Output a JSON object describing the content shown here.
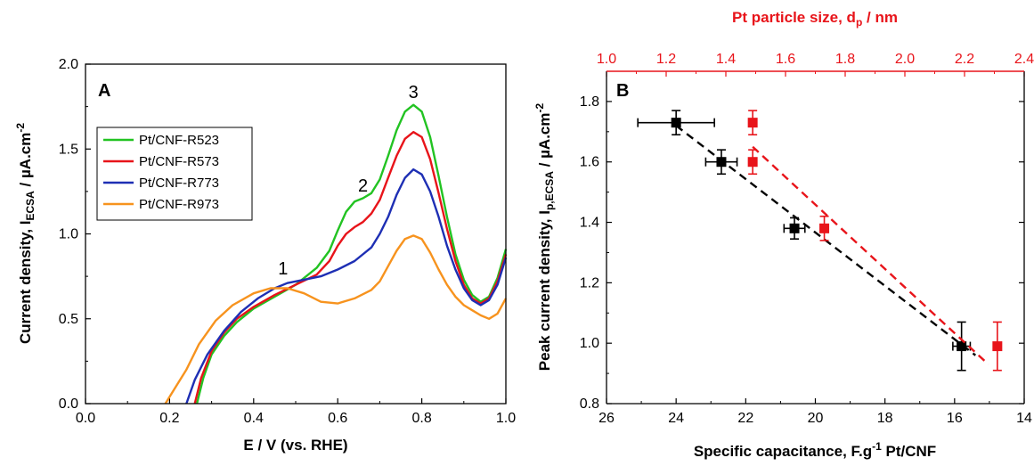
{
  "chart_data": [
    {
      "panel": "A",
      "type": "line",
      "xlabel": "E / V (vs. RHE)",
      "ylabel": {
        "main": "Current density, I",
        "sub": "ECSA",
        "unit": " / µA.cm",
        "sup": "-2"
      },
      "xlim": [
        0.0,
        1.0
      ],
      "ylim": [
        0.0,
        2.0
      ],
      "xticks": [
        0.0,
        0.2,
        0.4,
        0.6,
        0.8,
        1.0
      ],
      "yticks": [
        0.0,
        0.5,
        1.0,
        1.5,
        2.0
      ],
      "xticklabels": [
        "0.0",
        "0.2",
        "0.4",
        "0.6",
        "0.8",
        "1.0"
      ],
      "yticklabels": [
        "0.0",
        "0.5",
        "1.0",
        "1.5",
        "2.0"
      ],
      "legend_position": "top-left",
      "annotations": [
        {
          "text": "1",
          "x": 0.47,
          "y": 0.76
        },
        {
          "text": "2",
          "x": 0.66,
          "y": 1.25
        },
        {
          "text": "3",
          "x": 0.78,
          "y": 1.8
        }
      ],
      "series": [
        {
          "name": "Pt/CNF-R523",
          "color": "#22c322",
          "points": [
            [
              0.265,
              0.0
            ],
            [
              0.28,
              0.15
            ],
            [
              0.3,
              0.29
            ],
            [
              0.33,
              0.4
            ],
            [
              0.36,
              0.48
            ],
            [
              0.4,
              0.56
            ],
            [
              0.45,
              0.63
            ],
            [
              0.5,
              0.7
            ],
            [
              0.55,
              0.8
            ],
            [
              0.58,
              0.9
            ],
            [
              0.6,
              1.02
            ],
            [
              0.62,
              1.13
            ],
            [
              0.64,
              1.19
            ],
            [
              0.66,
              1.21
            ],
            [
              0.68,
              1.24
            ],
            [
              0.7,
              1.32
            ],
            [
              0.72,
              1.46
            ],
            [
              0.74,
              1.61
            ],
            [
              0.76,
              1.72
            ],
            [
              0.78,
              1.76
            ],
            [
              0.8,
              1.72
            ],
            [
              0.82,
              1.57
            ],
            [
              0.84,
              1.34
            ],
            [
              0.86,
              1.1
            ],
            [
              0.88,
              0.88
            ],
            [
              0.9,
              0.73
            ],
            [
              0.92,
              0.64
            ],
            [
              0.94,
              0.6
            ],
            [
              0.96,
              0.63
            ],
            [
              0.98,
              0.74
            ],
            [
              1.0,
              0.91
            ]
          ]
        },
        {
          "name": "Pt/CNF-R573",
          "color": "#e8141a",
          "points": [
            [
              0.26,
              0.0
            ],
            [
              0.275,
              0.15
            ],
            [
              0.3,
              0.31
            ],
            [
              0.33,
              0.42
            ],
            [
              0.36,
              0.5
            ],
            [
              0.4,
              0.57
            ],
            [
              0.45,
              0.64
            ],
            [
              0.5,
              0.7
            ],
            [
              0.55,
              0.76
            ],
            [
              0.58,
              0.84
            ],
            [
              0.6,
              0.93
            ],
            [
              0.62,
              1.0
            ],
            [
              0.64,
              1.04
            ],
            [
              0.66,
              1.07
            ],
            [
              0.68,
              1.12
            ],
            [
              0.7,
              1.2
            ],
            [
              0.72,
              1.33
            ],
            [
              0.74,
              1.46
            ],
            [
              0.76,
              1.56
            ],
            [
              0.78,
              1.6
            ],
            [
              0.8,
              1.57
            ],
            [
              0.82,
              1.44
            ],
            [
              0.84,
              1.24
            ],
            [
              0.86,
              1.03
            ],
            [
              0.88,
              0.84
            ],
            [
              0.9,
              0.7
            ],
            [
              0.92,
              0.62
            ],
            [
              0.94,
              0.59
            ],
            [
              0.96,
              0.62
            ],
            [
              0.98,
              0.72
            ],
            [
              1.0,
              0.88
            ]
          ]
        },
        {
          "name": "Pt/CNF-R773",
          "color": "#1e2fb4",
          "points": [
            [
              0.24,
              0.0
            ],
            [
              0.26,
              0.14
            ],
            [
              0.29,
              0.29
            ],
            [
              0.33,
              0.43
            ],
            [
              0.37,
              0.54
            ],
            [
              0.41,
              0.62
            ],
            [
              0.45,
              0.68
            ],
            [
              0.48,
              0.71
            ],
            [
              0.52,
              0.73
            ],
            [
              0.56,
              0.75
            ],
            [
              0.6,
              0.79
            ],
            [
              0.64,
              0.84
            ],
            [
              0.68,
              0.92
            ],
            [
              0.7,
              1.0
            ],
            [
              0.72,
              1.1
            ],
            [
              0.74,
              1.23
            ],
            [
              0.76,
              1.33
            ],
            [
              0.78,
              1.38
            ],
            [
              0.8,
              1.35
            ],
            [
              0.82,
              1.25
            ],
            [
              0.84,
              1.1
            ],
            [
              0.86,
              0.93
            ],
            [
              0.88,
              0.79
            ],
            [
              0.9,
              0.68
            ],
            [
              0.92,
              0.61
            ],
            [
              0.94,
              0.58
            ],
            [
              0.96,
              0.61
            ],
            [
              0.98,
              0.7
            ],
            [
              1.0,
              0.86
            ]
          ]
        },
        {
          "name": "Pt/CNF-R973",
          "color": "#f7931e",
          "points": [
            [
              0.19,
              0.0
            ],
            [
              0.21,
              0.08
            ],
            [
              0.24,
              0.2
            ],
            [
              0.27,
              0.35
            ],
            [
              0.31,
              0.49
            ],
            [
              0.35,
              0.58
            ],
            [
              0.4,
              0.65
            ],
            [
              0.44,
              0.68
            ],
            [
              0.48,
              0.68
            ],
            [
              0.52,
              0.65
            ],
            [
              0.56,
              0.6
            ],
            [
              0.6,
              0.59
            ],
            [
              0.64,
              0.62
            ],
            [
              0.68,
              0.67
            ],
            [
              0.7,
              0.72
            ],
            [
              0.72,
              0.81
            ],
            [
              0.74,
              0.9
            ],
            [
              0.76,
              0.97
            ],
            [
              0.78,
              0.99
            ],
            [
              0.8,
              0.97
            ],
            [
              0.82,
              0.89
            ],
            [
              0.84,
              0.79
            ],
            [
              0.86,
              0.7
            ],
            [
              0.88,
              0.63
            ],
            [
              0.9,
              0.58
            ],
            [
              0.92,
              0.55
            ],
            [
              0.94,
              0.52
            ],
            [
              0.96,
              0.5
            ],
            [
              0.98,
              0.53
            ],
            [
              1.0,
              0.62
            ]
          ]
        }
      ]
    },
    {
      "panel": "B",
      "type": "scatter",
      "xlabel": {
        "main": "Specific capacitance, F.g",
        "sup": "-1",
        "tail": " Pt/CNF"
      },
      "ylabel": {
        "main": "Peak current density, I",
        "sub": "p,ECSA",
        "unit": " / µA.cm",
        "sup": "-2"
      },
      "x2label": {
        "main": "Pt particle size, d",
        "sub": "p",
        "tail": " / nm"
      },
      "xlim": [
        26,
        14
      ],
      "ylim": [
        0.8,
        1.9
      ],
      "x2lim": [
        1.0,
        2.4
      ],
      "xticks": [
        26,
        24,
        22,
        20,
        18,
        16,
        14
      ],
      "yticks": [
        0.8,
        1.0,
        1.2,
        1.4,
        1.6,
        1.8
      ],
      "x2ticks": [
        1.0,
        1.2,
        1.4,
        1.6,
        1.8,
        2.0,
        2.2,
        2.4
      ],
      "xticklabels": [
        "26",
        "24",
        "22",
        "20",
        "18",
        "16",
        "14"
      ],
      "yticklabels": [
        "0.8",
        "1.0",
        "1.2",
        "1.4",
        "1.6",
        "1.8"
      ],
      "x2ticklabels": [
        "1.0",
        "1.2",
        "1.4",
        "1.6",
        "1.8",
        "2.0",
        "2.2",
        "2.4"
      ],
      "series": [
        {
          "axis": "bottom",
          "color": "#000000",
          "points": [
            {
              "x": 24.0,
              "y": 1.73,
              "xerr": 1.1,
              "yerr": 0.04
            },
            {
              "x": 22.7,
              "y": 1.6,
              "xerr": 0.45,
              "yerr": 0.04
            },
            {
              "x": 20.6,
              "y": 1.38,
              "xerr": 0.3,
              "yerr": 0.035
            },
            {
              "x": 15.8,
              "y": 0.99,
              "xerr": 0.25,
              "yerr": 0.08
            }
          ],
          "fit": [
            [
              24.0,
              1.72
            ],
            [
              15.4,
              0.96
            ]
          ]
        },
        {
          "axis": "top",
          "color": "#e8141a",
          "points": [
            {
              "x": 1.49,
              "y": 1.73,
              "yerr": 0.04
            },
            {
              "x": 1.49,
              "y": 1.6,
              "yerr": 0.04
            },
            {
              "x": 1.73,
              "y": 1.38,
              "yerr": 0.04
            },
            {
              "x": 2.31,
              "y": 0.99,
              "yerr": 0.08
            }
          ],
          "fit": [
            [
              1.49,
              1.65
            ],
            [
              2.28,
              0.93
            ]
          ]
        }
      ]
    }
  ]
}
